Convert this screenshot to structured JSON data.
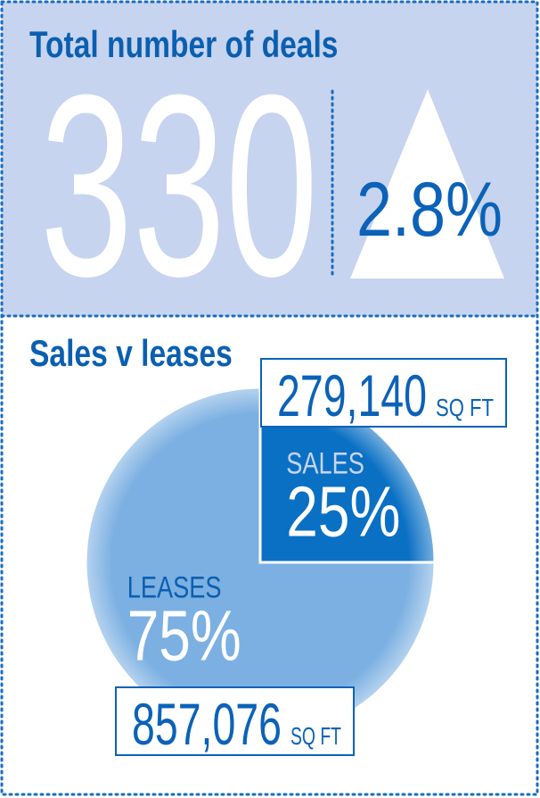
{
  "deals": {
    "title": "Total number of deals",
    "count": 330,
    "change": "2.8%"
  },
  "chart_data": {
    "type": "pie",
    "title": "Sales v leases",
    "categories": [
      "SALES",
      "LEASES"
    ],
    "values": [
      25,
      75
    ],
    "value_labels": [
      "25%",
      "75%"
    ],
    "colors": [
      "#0a70c4",
      "#7cb0e2"
    ],
    "sq_ft": [
      {
        "value": 279140,
        "label": "279,140"
      },
      {
        "value": 857076,
        "label": "857,076"
      }
    ],
    "sq_ft_unit": "SQ FT"
  }
}
